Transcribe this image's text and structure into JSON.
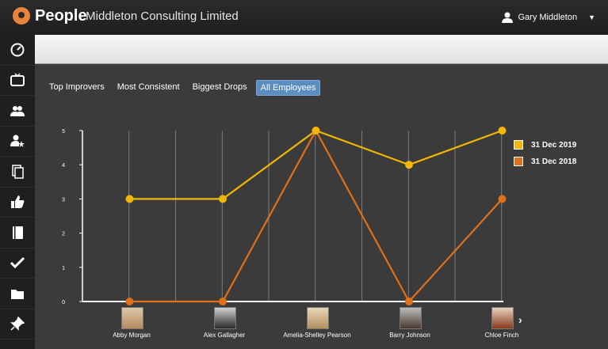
{
  "header": {
    "brand": "People",
    "company": "- Middleton Consulting Limited",
    "user_name": "Gary Middleton"
  },
  "sidebar": {
    "items": [
      {
        "icon": "dashboard-icon"
      },
      {
        "icon": "tv-icon"
      },
      {
        "icon": "people-icon"
      },
      {
        "icon": "user-star-icon"
      },
      {
        "icon": "documents-icon"
      },
      {
        "icon": "thumbs-up-icon"
      },
      {
        "icon": "notebook-icon"
      },
      {
        "icon": "checkmark-icon"
      },
      {
        "icon": "folder-icon"
      },
      {
        "icon": "pin-icon"
      }
    ]
  },
  "tabs": [
    {
      "label": "Top Improvers",
      "active": false
    },
    {
      "label": "Most Consistent",
      "active": false
    },
    {
      "label": "Biggest Drops",
      "active": false
    },
    {
      "label": "All Employees",
      "active": true
    }
  ],
  "chart_data": {
    "type": "line",
    "categories": [
      "Abby Morgan",
      "Alex Gallagher",
      "Amelia-Shelley Pearson",
      "Barry Johnson",
      "Chloe Finch"
    ],
    "series": [
      {
        "name": "31 Dec 2019",
        "color": "#f2b705",
        "values": [
          3,
          3,
          5,
          4,
          5
        ]
      },
      {
        "name": "31 Dec 2018",
        "color": "#e0701a",
        "values": [
          0,
          0,
          5,
          0,
          3
        ]
      }
    ],
    "ylim": [
      0,
      5
    ],
    "yticks": [
      "0",
      "1",
      "2",
      "3",
      "4",
      "5"
    ],
    "grid": true,
    "legend": "right"
  },
  "colors": {
    "active_tab": "#5b8dc0",
    "background": "#3b3b3b"
  }
}
